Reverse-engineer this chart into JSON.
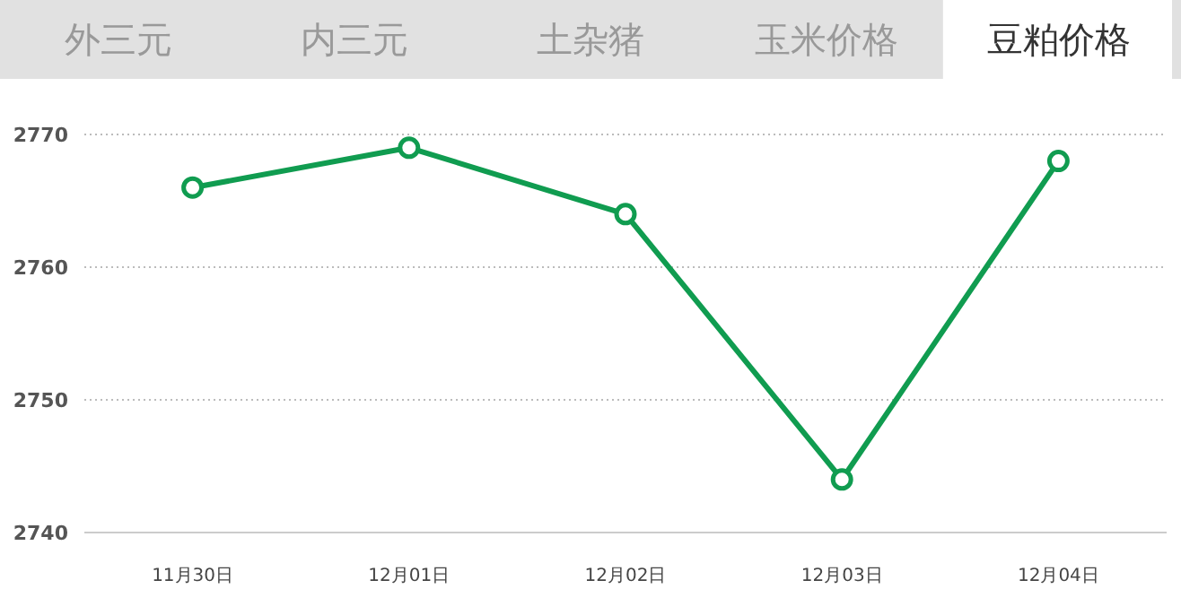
{
  "chart_data": {
    "type": "line",
    "title": "豆粕价格",
    "annotations": [
      "外三元",
      "内三元",
      "土杂猪",
      "玉米价格"
    ],
    "categories": [
      "11月30日",
      "12月01日",
      "12月02日",
      "12月03日",
      "12月04日"
    ],
    "series": [
      {
        "color": "#109c50",
        "values": [
          2766,
          2769,
          2764,
          2744,
          2768
        ]
      }
    ],
    "ylim": [
      2740,
      2770
    ],
    "yticks": [
      2740,
      2750,
      2760,
      2770
    ],
    "grid": "y",
    "marker": "circle",
    "line_style": "solid"
  }
}
